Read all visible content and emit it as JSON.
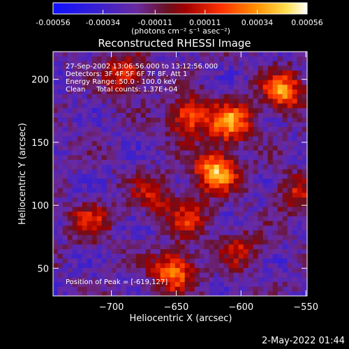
{
  "colorbar": {
    "min": -0.00056,
    "max": 0.00056,
    "tick_values": [
      -0.00056,
      -0.00034,
      -0.00011,
      0.00011,
      0.00034,
      0.00056
    ],
    "tick_labels": [
      "-0.00056",
      "-0.00034",
      "-0.00011",
      "0.00011",
      "0.00034",
      "0.00056"
    ],
    "unit_label": "(photons cm⁻² s⁻¹ asec⁻²)"
  },
  "chart_data": {
    "type": "heatmap",
    "title": "Reconstructed RHESSI Image",
    "xlabel": "Heliocentric X (arcsec)",
    "ylabel": "Heliocentric Y (arcsec)",
    "xlim": [
      -745,
      -549
    ],
    "ylim": [
      28,
      222
    ],
    "x_ticks": [
      -700,
      -650,
      -600,
      -550
    ],
    "x_tick_labels": [
      "−700",
      "−650",
      "−600",
      "−550"
    ],
    "y_ticks": [
      50,
      100,
      150,
      200
    ],
    "y_tick_labels": [
      "50",
      "100",
      "150",
      "200"
    ],
    "colormap": "RHESSI blue-purple-red-yellow-white",
    "annotations": [
      "27-Sep-2002 13:06:56.000 to 13:12:56.000",
      "Detectors: 3F 4F 5F 6F 7F 8F, Att 1",
      "Energy Range: 50.0 - 100.0 keV",
      "Clean     Total counts: 1.37E+04"
    ],
    "peak_label": "Position of Peak = [-619,127]",
    "peak_position": [
      -619,
      127
    ],
    "sources": [
      {
        "x": -619,
        "y": 127,
        "amplitude": 0.00056
      },
      {
        "x": -608,
        "y": 166,
        "amplitude": 0.00048
      },
      {
        "x": -568,
        "y": 190,
        "amplitude": 0.00046
      },
      {
        "x": -652,
        "y": 48,
        "amplitude": 0.00046
      },
      {
        "x": -640,
        "y": 170,
        "amplitude": 0.0004
      },
      {
        "x": -690,
        "y": 205,
        "amplitude": 0.00032
      },
      {
        "x": -640,
        "y": 90,
        "amplitude": 0.00028
      },
      {
        "x": -716,
        "y": 88,
        "amplitude": 0.00026
      },
      {
        "x": -668,
        "y": 108,
        "amplitude": 0.00025
      },
      {
        "x": -600,
        "y": 65,
        "amplitude": 0.00022
      },
      {
        "x": -558,
        "y": 110,
        "amplitude": 0.00025
      }
    ]
  },
  "footer": {
    "timestamp": "2-May-2022 01:44"
  }
}
